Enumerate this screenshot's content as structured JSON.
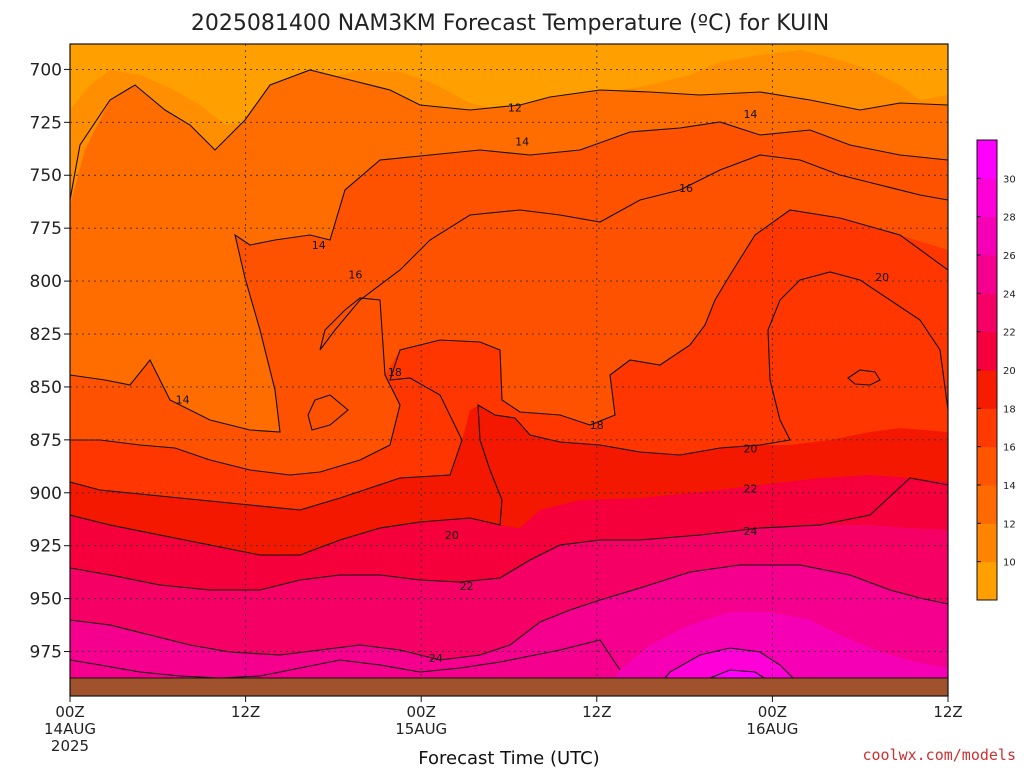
{
  "chart_data": {
    "type": "heatmap",
    "title": "2025081400 NAM3KM Forecast Temperature (ºC) for KUIN",
    "xlabel": "Forecast Time (UTC)",
    "ylabel": "",
    "credit": "coolwx.com/models",
    "x_ticks": [
      {
        "hour": 0,
        "line1": "00Z",
        "line2": "14AUG",
        "line3": "2025"
      },
      {
        "hour": 12,
        "line1": "12Z",
        "line2": "",
        "line3": ""
      },
      {
        "hour": 24,
        "line1": "00Z",
        "line2": "15AUG",
        "line3": ""
      },
      {
        "hour": 36,
        "line1": "12Z",
        "line2": "",
        "line3": ""
      },
      {
        "hour": 48,
        "line1": "00Z",
        "line2": "16AUG",
        "line3": ""
      },
      {
        "hour": 60,
        "line1": "12Z",
        "line2": "",
        "line3": ""
      }
    ],
    "x_range_hours": [
      0,
      60
    ],
    "y_ticks": [
      "700",
      "725",
      "750",
      "775",
      "800",
      "825",
      "850",
      "875",
      "900",
      "925",
      "950",
      "975"
    ],
    "y_range_hpa": [
      688,
      996
    ],
    "y_inverted": true,
    "grid": true,
    "colorbar": {
      "placement": "right",
      "labels": [
        "10",
        "12",
        "14",
        "16",
        "18",
        "20",
        "22",
        "24",
        "26",
        "28",
        "30"
      ],
      "colors": [
        "#ff9f00",
        "#ff8400",
        "#ff6a00",
        "#ff5400",
        "#ff3a00",
        "#f51c00",
        "#f5003c",
        "#f50064",
        "#f5008e",
        "#f500b4",
        "#ff00d8",
        "#ff00ff"
      ]
    },
    "contour_labels": [
      {
        "text": "12",
        "hour": 30.4,
        "hpa": 718
      },
      {
        "text": "14",
        "hour": 30.9,
        "hpa": 734
      },
      {
        "text": "14",
        "hour": 46.5,
        "hpa": 721
      },
      {
        "text": "16",
        "hour": 42.1,
        "hpa": 756
      },
      {
        "text": "14",
        "hour": 17.0,
        "hpa": 783
      },
      {
        "text": "16",
        "hour": 19.5,
        "hpa": 797
      },
      {
        "text": "18",
        "hour": 22.2,
        "hpa": 843
      },
      {
        "text": "14",
        "hour": 7.7,
        "hpa": 856
      },
      {
        "text": "18",
        "hour": 36.0,
        "hpa": 868
      },
      {
        "text": "20",
        "hour": 46.5,
        "hpa": 879
      },
      {
        "text": "22",
        "hour": 46.5,
        "hpa": 898
      },
      {
        "text": "24",
        "hour": 46.5,
        "hpa": 918
      },
      {
        "text": "20",
        "hour": 26.1,
        "hpa": 920
      },
      {
        "text": "22",
        "hour": 27.1,
        "hpa": 944
      },
      {
        "text": "24",
        "hour": 25.0,
        "hpa": 978
      },
      {
        "text": "20",
        "hour": 55.5,
        "hpa": 798
      }
    ],
    "ground": {
      "label": "",
      "color": "#a0522d"
    }
  }
}
